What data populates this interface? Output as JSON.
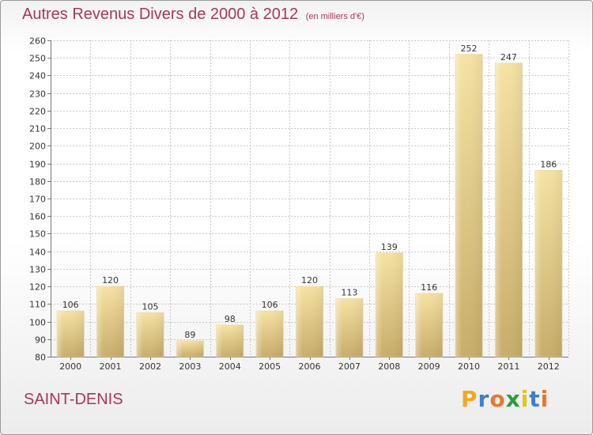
{
  "title": "Autres Revenus Divers de 2000 à 2012",
  "subtitle": "(en milliers d'€)",
  "location": "SAINT-DENIS",
  "logo": {
    "text": "Proxiti",
    "letter_colors": [
      "#f5a623",
      "#3b7fd1",
      "#e8772e",
      "#2a9d3a",
      "#e8c31a",
      "#3b7fd1",
      "#e8772e"
    ]
  },
  "colors": {
    "title": "#a6375a",
    "bar_light": "#f6e3a3",
    "bar_dark": "#c8ad6a",
    "grid": "#c8c8c8"
  },
  "chart_data": {
    "type": "bar",
    "categories": [
      "2000",
      "2001",
      "2002",
      "2003",
      "2004",
      "2005",
      "2006",
      "2007",
      "2008",
      "2009",
      "2010",
      "2011",
      "2012"
    ],
    "values": [
      106,
      120,
      105,
      89,
      98,
      106,
      120,
      113,
      139,
      116,
      252,
      247,
      186
    ],
    "ylim": [
      80,
      260
    ],
    "yticks": [
      80,
      90,
      100,
      110,
      120,
      130,
      140,
      150,
      160,
      170,
      180,
      190,
      200,
      210,
      220,
      230,
      240,
      250,
      260
    ],
    "grid": true,
    "xlabel": "",
    "ylabel": ""
  }
}
